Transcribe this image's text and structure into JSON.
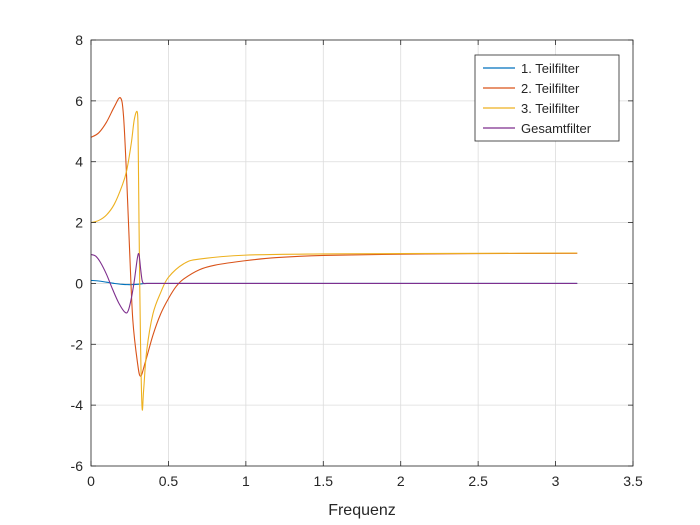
{
  "chart_data": {
    "type": "line",
    "title": "",
    "xlabel": "Frequenz",
    "ylabel": "",
    "xlim": [
      0,
      3.5
    ],
    "ylim": [
      -6,
      8
    ],
    "xticks": [
      0,
      0.5,
      1,
      1.5,
      2,
      2.5,
      3,
      3.5
    ],
    "xtick_labels": [
      "0",
      "0.5",
      "1",
      "1.5",
      "2",
      "2.5",
      "3",
      "3.5"
    ],
    "yticks": [
      -6,
      -4,
      -2,
      0,
      2,
      4,
      6,
      8
    ],
    "ytick_labels": [
      "-6",
      "-4",
      "-2",
      "0",
      "2",
      "4",
      "6",
      "8"
    ],
    "grid": true,
    "legend_position": "top-right",
    "series": [
      {
        "name": "1. Teilfilter",
        "color": "#0072BD",
        "x": [
          0,
          0.05,
          0.1,
          0.15,
          0.2,
          0.25,
          0.3,
          0.35,
          0.4,
          0.6,
          1.0,
          2.0,
          3.14
        ],
        "y": [
          0.1,
          0.08,
          0.04,
          0.0,
          -0.03,
          -0.04,
          -0.03,
          0.0,
          0.0,
          0.0,
          0.0,
          0.0,
          0.0
        ]
      },
      {
        "name": "2. Teilfilter",
        "color": "#D95319",
        "x": [
          0,
          0.05,
          0.1,
          0.15,
          0.19,
          0.21,
          0.23,
          0.25,
          0.27,
          0.3,
          0.32,
          0.35,
          0.4,
          0.45,
          0.5,
          0.55,
          0.6,
          0.7,
          0.8,
          1.0,
          1.2,
          1.5,
          2.0,
          2.5,
          3.14
        ],
        "y": [
          4.8,
          4.95,
          5.3,
          5.8,
          6.1,
          5.5,
          3.5,
          1.0,
          -1.2,
          -2.6,
          -3.05,
          -2.6,
          -1.7,
          -1.0,
          -0.5,
          -0.1,
          0.15,
          0.45,
          0.6,
          0.75,
          0.85,
          0.92,
          0.96,
          0.98,
          0.99
        ]
      },
      {
        "name": "3. Teilfilter",
        "color": "#EDB120",
        "x": [
          0,
          0.05,
          0.1,
          0.15,
          0.2,
          0.23,
          0.26,
          0.28,
          0.3,
          0.305,
          0.31,
          0.32,
          0.33,
          0.34,
          0.36,
          0.4,
          0.45,
          0.5,
          0.6,
          0.7,
          1.0,
          1.5,
          2.0,
          3.14
        ],
        "y": [
          2.0,
          2.07,
          2.25,
          2.6,
          3.2,
          3.7,
          4.6,
          5.4,
          5.6,
          4.5,
          2.0,
          -2.0,
          -4.1,
          -3.5,
          -2.2,
          -1.0,
          -0.3,
          0.2,
          0.65,
          0.8,
          0.93,
          0.97,
          0.98,
          1.0
        ]
      },
      {
        "name": "Gesamtfilter",
        "color": "#7E2F8E",
        "x": [
          0,
          0.03,
          0.06,
          0.1,
          0.14,
          0.18,
          0.22,
          0.24,
          0.26,
          0.28,
          0.3,
          0.31,
          0.32,
          0.33,
          0.34,
          0.36,
          0.4,
          0.6,
          1.0,
          2.0,
          3.14
        ],
        "y": [
          0.95,
          0.9,
          0.7,
          0.3,
          -0.2,
          -0.65,
          -0.95,
          -0.9,
          -0.5,
          0.1,
          0.85,
          0.95,
          0.5,
          0.1,
          0.0,
          0.0,
          0.0,
          0.0,
          0.0,
          0.0,
          0.0
        ]
      }
    ]
  }
}
